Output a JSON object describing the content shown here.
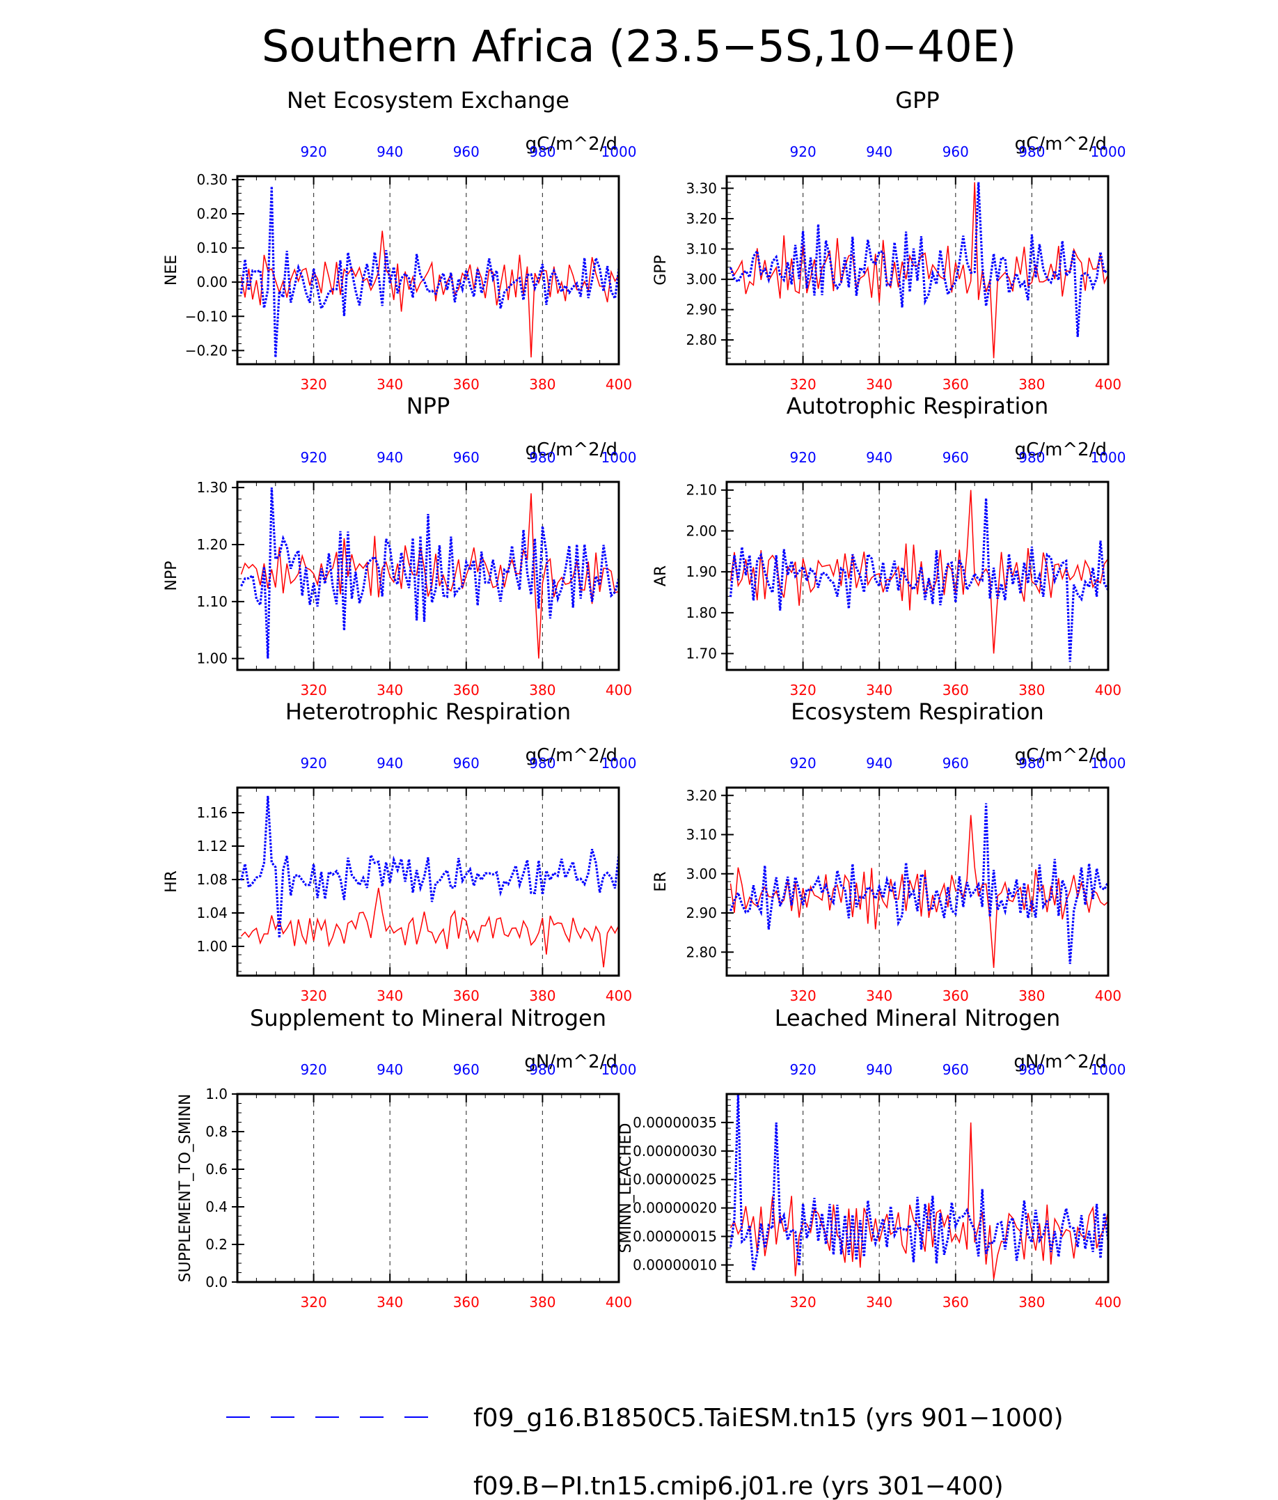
{
  "figure": {
    "title": "Southern Africa (23.5−5S,10−40E)",
    "colors": {
      "series_a": "#0000ff",
      "series_b": "#ff0000",
      "axis": "#000000",
      "grid": "#444444"
    }
  },
  "legend": {
    "items": [
      {
        "label": "f09_g16.B1850C5.TaiESM.tn15 (yrs 901−1000)",
        "color": "#0000ff",
        "style": "dashed"
      },
      {
        "label": "f09.B−PI.tn15.cmip6.j01.re (yrs 301−400)",
        "color": "#ff0000",
        "style": "solid"
      }
    ]
  },
  "chart_data": [
    {
      "type": "line",
      "id": "nee",
      "title": "Net Ecosystem Exchange",
      "units": "gC/m^2/d",
      "ylabel": "NEE",
      "xlim": [
        300,
        400
      ],
      "top_xlim": [
        900,
        1000
      ],
      "x_ticks": [
        320,
        340,
        360,
        380,
        400
      ],
      "top_ticks": [
        920,
        940,
        960,
        980,
        1000
      ],
      "ylim": [
        -0.24,
        0.31
      ],
      "y_ticks": [
        -0.2,
        -0.1,
        0.0,
        0.1,
        0.2,
        0.3
      ],
      "y_tick_labels": [
        "−0.20",
        "−0.10",
        "0.00",
        "0.10",
        "0.20",
        "0.30"
      ],
      "minor": 0.02,
      "mean": 0.0,
      "amp_blue": 0.09,
      "amp_red": 0.07,
      "blue_peaks": [
        [
          8,
          0.28
        ],
        [
          9,
          -0.22
        ]
      ],
      "red_peaks": [
        [
          37,
          0.15
        ],
        [
          76,
          -0.22
        ]
      ],
      "series": [
        {
          "name": "f09_g16.B1850C5.TaiESM.tn15 (yrs 901−1000)",
          "years": "901-1000",
          "values": []
        },
        {
          "name": "f09.B−PI.tn15.cmip6.j01.re (yrs 301−400)",
          "years": "301-400",
          "values": []
        }
      ]
    },
    {
      "type": "line",
      "id": "gpp",
      "title": "GPP",
      "units": "gC/m^2/d",
      "ylabel": "GPP",
      "xlim": [
        300,
        400
      ],
      "top_xlim": [
        900,
        1000
      ],
      "x_ticks": [
        320,
        340,
        360,
        380,
        400
      ],
      "top_ticks": [
        920,
        940,
        960,
        980,
        1000
      ],
      "ylim": [
        2.72,
        3.34
      ],
      "y_ticks": [
        2.8,
        2.9,
        3.0,
        3.1,
        3.2,
        3.3
      ],
      "y_tick_labels": [
        "2.80",
        "2.90",
        "3.00",
        "3.10",
        "3.20",
        "3.30"
      ],
      "minor": 0.02,
      "mean": 3.03,
      "amp_blue": 0.12,
      "amp_red": 0.1,
      "blue_peaks": [
        [
          65,
          3.32
        ],
        [
          91,
          2.81
        ]
      ],
      "red_peaks": [
        [
          64,
          3.32
        ],
        [
          69,
          2.74
        ]
      ],
      "series": [
        {
          "name": "f09_g16.B1850C5.TaiESM.tn15 (yrs 901−1000)",
          "years": "901-1000",
          "values": []
        },
        {
          "name": "f09.B−PI.tn15.cmip6.j01.re (yrs 301−400)",
          "years": "301-400",
          "values": []
        }
      ]
    },
    {
      "type": "line",
      "id": "npp",
      "title": "NPP",
      "units": "gC/m^2/d",
      "ylabel": "NPP",
      "xlim": [
        300,
        400
      ],
      "top_xlim": [
        900,
        1000
      ],
      "x_ticks": [
        320,
        340,
        360,
        380,
        400
      ],
      "top_ticks": [
        920,
        940,
        960,
        980,
        1000
      ],
      "ylim": [
        0.98,
        1.31
      ],
      "y_ticks": [
        1.0,
        1.1,
        1.2,
        1.3
      ],
      "y_tick_labels": [
        "1.00",
        "1.10",
        "1.20",
        "1.30"
      ],
      "minor": 0.02,
      "mean": 1.15,
      "amp_blue": 0.08,
      "amp_red": 0.05,
      "blue_peaks": [
        [
          8,
          1.3
        ],
        [
          7,
          1.0
        ]
      ],
      "red_peaks": [
        [
          76,
          1.29
        ],
        [
          78,
          1.0
        ]
      ],
      "series": [
        {
          "name": "f09_g16.B1850C5.TaiESM.tn15 (yrs 901−1000)",
          "years": "901-1000",
          "values": []
        },
        {
          "name": "f09.B−PI.tn15.cmip6.j01.re (yrs 301−400)",
          "years": "301-400",
          "values": []
        }
      ]
    },
    {
      "type": "line",
      "id": "ar",
      "title": "Autotrophic Respiration",
      "units": "gC/m^2/d",
      "ylabel": "AR",
      "xlim": [
        300,
        400
      ],
      "top_xlim": [
        900,
        1000
      ],
      "x_ticks": [
        320,
        340,
        360,
        380,
        400
      ],
      "top_ticks": [
        920,
        940,
        960,
        980,
        1000
      ],
      "ylim": [
        1.66,
        2.12
      ],
      "y_ticks": [
        1.7,
        1.8,
        1.9,
        2.0,
        2.1
      ],
      "y_tick_labels": [
        "1.70",
        "1.80",
        "1.90",
        "2.00",
        "2.10"
      ],
      "minor": 0.02,
      "mean": 1.89,
      "amp_blue": 0.08,
      "amp_red": 0.07,
      "blue_peaks": [
        [
          67,
          2.08
        ],
        [
          89,
          1.68
        ]
      ],
      "red_peaks": [
        [
          63,
          2.1
        ],
        [
          69,
          1.7
        ]
      ],
      "series": [
        {
          "name": "f09_g16.B1850C5.TaiESM.tn15 (yrs 901−1000)",
          "years": "901-1000",
          "values": []
        },
        {
          "name": "f09.B−PI.tn15.cmip6.j01.re (yrs 301−400)",
          "years": "301-400",
          "values": []
        }
      ]
    },
    {
      "type": "line",
      "id": "hr",
      "title": "Heterotrophic Respiration",
      "units": "gC/m^2/d",
      "ylabel": "HR",
      "xlim": [
        300,
        400
      ],
      "top_xlim": [
        900,
        1000
      ],
      "x_ticks": [
        320,
        340,
        360,
        380,
        400
      ],
      "top_ticks": [
        920,
        940,
        960,
        980,
        1000
      ],
      "ylim": [
        0.965,
        1.19
      ],
      "y_ticks": [
        1.0,
        1.04,
        1.08,
        1.12,
        1.16
      ],
      "y_tick_labels": [
        "1.00",
        "1.04",
        "1.08",
        "1.12",
        "1.16"
      ],
      "minor": 0.01,
      "mean_blue": 1.085,
      "mean_red": 1.02,
      "amp_blue": 0.03,
      "amp_red": 0.025,
      "blue_peaks": [
        [
          7,
          1.18
        ],
        [
          10,
          1.01
        ]
      ],
      "red_peaks": [
        [
          36,
          1.07
        ],
        [
          95,
          0.975
        ]
      ],
      "series": [
        {
          "name": "f09_g16.B1850C5.TaiESM.tn15 (yrs 901−1000)",
          "years": "901-1000",
          "values": []
        },
        {
          "name": "f09.B−PI.tn15.cmip6.j01.re (yrs 301−400)",
          "years": "301-400",
          "values": []
        }
      ]
    },
    {
      "type": "line",
      "id": "er",
      "title": "Ecosystem Respiration",
      "units": "gC/m^2/d",
      "ylabel": "ER",
      "xlim": [
        300,
        400
      ],
      "top_xlim": [
        900,
        1000
      ],
      "x_ticks": [
        320,
        340,
        360,
        380,
        400
      ],
      "top_ticks": [
        920,
        940,
        960,
        980,
        1000
      ],
      "ylim": [
        2.74,
        3.22
      ],
      "y_ticks": [
        2.8,
        2.9,
        3.0,
        3.1,
        3.2
      ],
      "y_tick_labels": [
        "2.80",
        "2.90",
        "3.00",
        "3.10",
        "3.20"
      ],
      "minor": 0.02,
      "mean": 2.95,
      "amp_blue": 0.08,
      "amp_red": 0.07,
      "blue_peaks": [
        [
          67,
          3.18
        ],
        [
          89,
          2.77
        ]
      ],
      "red_peaks": [
        [
          63,
          3.15
        ],
        [
          69,
          2.76
        ]
      ],
      "series": [
        {
          "name": "f09_g16.B1850C5.TaiESM.tn15 (yrs 901−1000)",
          "years": "901-1000",
          "values": []
        },
        {
          "name": "f09.B−PI.tn15.cmip6.j01.re (yrs 301−400)",
          "years": "301-400",
          "values": []
        }
      ]
    },
    {
      "type": "line",
      "id": "supp",
      "title": "Supplement to Mineral Nitrogen",
      "units": "gN/m^2/d",
      "ylabel": "SUPPLEMENT_TO_SMINN",
      "xlim": [
        300,
        400
      ],
      "top_xlim": [
        900,
        1000
      ],
      "x_ticks": [
        320,
        340,
        360,
        380,
        400
      ],
      "top_ticks": [
        920,
        940,
        960,
        980,
        1000
      ],
      "ylim": [
        0.0,
        1.0
      ],
      "y_ticks": [
        0.0,
        0.2,
        0.4,
        0.6,
        0.8,
        1.0
      ],
      "y_tick_labels": [
        "0.0",
        "0.2",
        "0.4",
        "0.6",
        "0.8",
        "1.0"
      ],
      "minor": 0.05,
      "empty": true,
      "series": [
        {
          "name": "f09_g16.B1850C5.TaiESM.tn15 (yrs 901−1000)",
          "years": "901-1000",
          "values": []
        },
        {
          "name": "f09.B−PI.tn15.cmip6.j01.re (yrs 301−400)",
          "years": "301-400",
          "values": []
        }
      ]
    },
    {
      "type": "line",
      "id": "leached",
      "title": "Leached Mineral Nitrogen",
      "units": "gN/m^2/d",
      "ylabel": "SMINN_LEACHED",
      "xlim": [
        300,
        400
      ],
      "top_xlim": [
        900,
        1000
      ],
      "x_ticks": [
        320,
        340,
        360,
        380,
        400
      ],
      "top_ticks": [
        920,
        940,
        960,
        980,
        1000
      ],
      "ylim": [
        7e-08,
        4e-07
      ],
      "y_ticks": [
        1e-07,
        1.5e-07,
        2e-07,
        2.5e-07,
        3e-07,
        3.5e-07
      ],
      "y_tick_labels": [
        "0.00000010",
        "0.00000015",
        "0.00000020",
        "0.00000025",
        "0.00000030",
        "0.00000035"
      ],
      "minor": 1e-08,
      "mean": 1.6e-07,
      "amp_blue": 6e-08,
      "amp_red": 6e-08,
      "blue_peaks": [
        [
          2,
          4e-07
        ],
        [
          12,
          3.5e-07
        ],
        [
          6,
          9e-08
        ]
      ],
      "red_peaks": [
        [
          63,
          3.5e-07
        ],
        [
          69,
          7.5e-08
        ]
      ],
      "series": [
        {
          "name": "f09_g16.B1850C5.TaiESM.tn15 (yrs 901−1000)",
          "years": "901-1000",
          "values": []
        },
        {
          "name": "f09.B−PI.tn15.cmip6.j01.re (yrs 301−400)",
          "years": "301-400",
          "values": []
        }
      ]
    }
  ]
}
